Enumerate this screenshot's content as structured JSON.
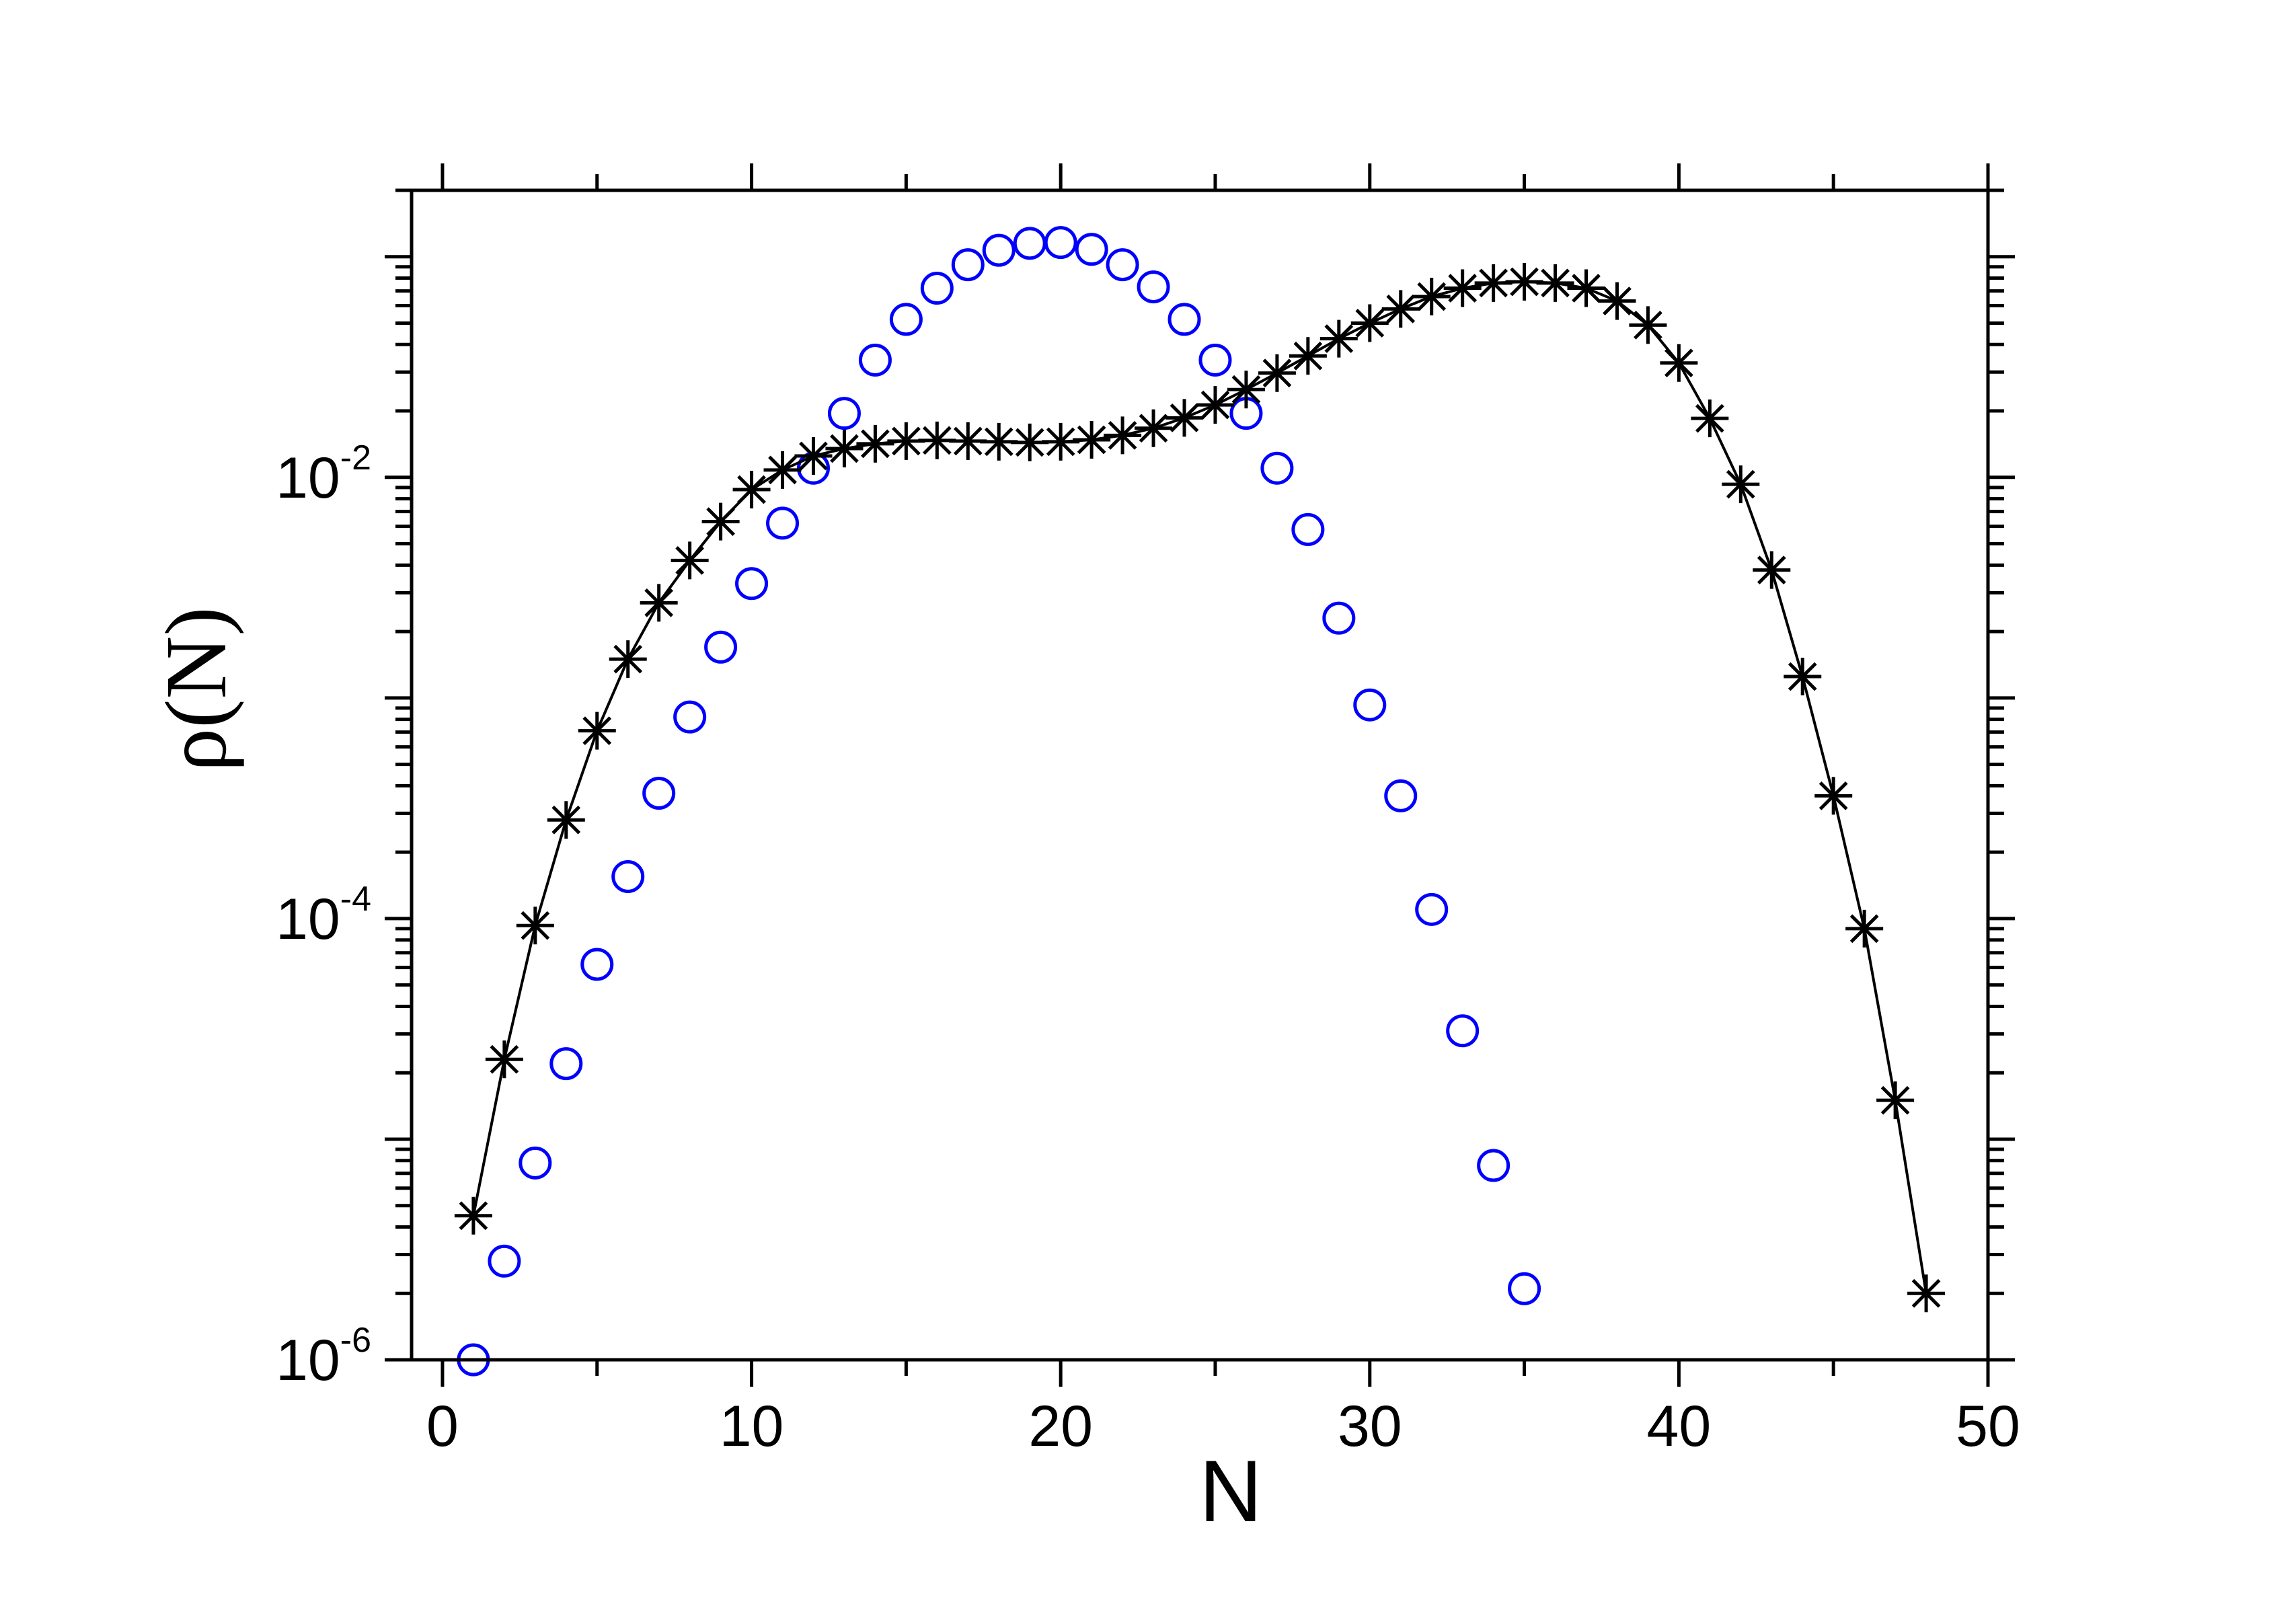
{
  "chart_data": {
    "type": "scatter",
    "xlabel": "N",
    "ylabel": "ρ(N)",
    "xlim": [
      -1,
      50
    ],
    "ylim": [
      1e-06,
      0.2
    ],
    "yscale": "log",
    "x_ticks": [
      0,
      10,
      20,
      30,
      40,
      50
    ],
    "x_tick_labels": [
      "0",
      "10",
      "20",
      "30",
      "40",
      "50"
    ],
    "y_ticks": [
      {
        "value": 0.01,
        "base": "10",
        "exp": "-2"
      },
      {
        "value": 0.0001,
        "base": "10",
        "exp": "-4"
      },
      {
        "value": 1e-06,
        "base": "10",
        "exp": "-6"
      }
    ],
    "grid": false,
    "legend": "none",
    "series": [
      {
        "marker": "circle",
        "color": "#0000ff",
        "x": [
          1,
          2,
          3,
          4,
          5,
          6,
          7,
          8,
          9,
          10,
          11,
          12,
          13,
          14,
          15,
          16,
          17,
          18,
          19,
          20,
          21,
          22,
          23,
          24,
          25,
          26,
          27,
          28,
          29,
          30,
          31,
          32,
          33,
          34,
          35
        ],
        "y": [
          1e-06,
          2.8e-06,
          7.8e-06,
          2.2e-05,
          6.2e-05,
          0.000155,
          0.00037,
          0.00082,
          0.0017,
          0.0033,
          0.0062,
          0.011,
          0.0195,
          0.034,
          0.052,
          0.072,
          0.092,
          0.107,
          0.115,
          0.116,
          0.108,
          0.092,
          0.073,
          0.052,
          0.034,
          0.0195,
          0.011,
          0.0058,
          0.0023,
          0.00093,
          0.00036,
          0.00011,
          3.1e-05,
          7.6e-06,
          2.1e-06
        ]
      },
      {
        "marker": "asterisk",
        "color": "#000000",
        "connected": true,
        "x": [
          1,
          2,
          3,
          4,
          5,
          6,
          7,
          8,
          9,
          10,
          11,
          12,
          13,
          14,
          15,
          16,
          17,
          18,
          19,
          20,
          21,
          22,
          23,
          24,
          25,
          26,
          27,
          28,
          29,
          30,
          31,
          32,
          33,
          34,
          35,
          36,
          37,
          38,
          39,
          40,
          41,
          42,
          43,
          44,
          45,
          46,
          47,
          48
        ],
        "y": [
          4.5e-06,
          2.3e-05,
          9.3e-05,
          0.00028,
          0.00071,
          0.0015,
          0.0027,
          0.0042,
          0.0063,
          0.0088,
          0.0108,
          0.0125,
          0.0135,
          0.0142,
          0.0146,
          0.0147,
          0.0146,
          0.0145,
          0.0144,
          0.0145,
          0.0148,
          0.0155,
          0.0167,
          0.0186,
          0.0213,
          0.025,
          0.0297,
          0.0355,
          0.0425,
          0.05,
          0.058,
          0.066,
          0.072,
          0.076,
          0.077,
          0.076,
          0.072,
          0.063,
          0.049,
          0.033,
          0.0185,
          0.0093,
          0.0038,
          0.00125,
          0.00036,
          9e-05,
          1.5e-05,
          2e-06
        ]
      }
    ]
  }
}
